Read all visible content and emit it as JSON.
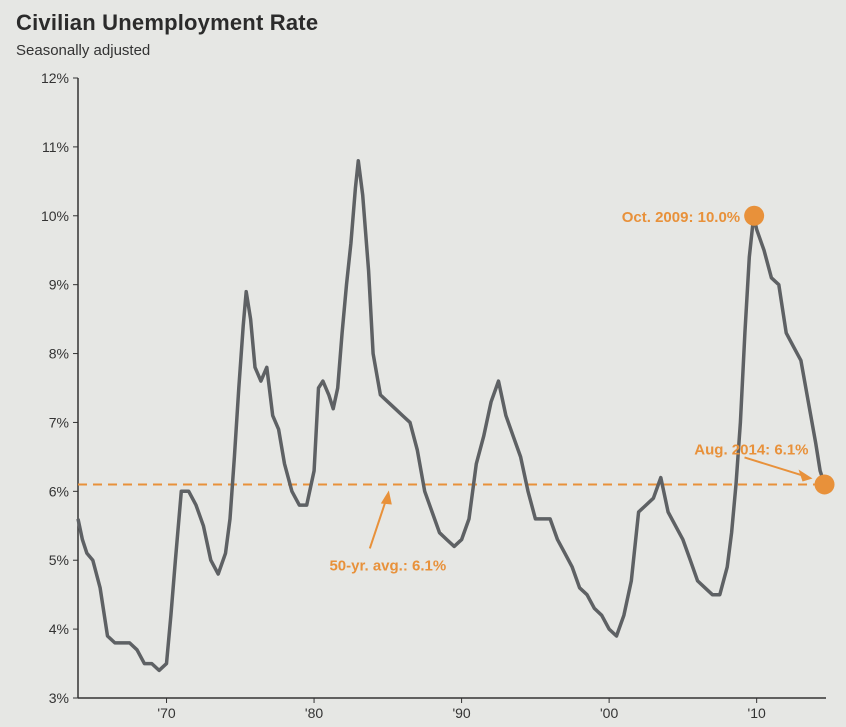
{
  "chart_data": {
    "type": "line",
    "title": "Civilian Unemployment Rate",
    "subtitle": "Seasonally adjusted",
    "xlabel": "",
    "ylabel": "",
    "xlim": [
      1964,
      2014.7
    ],
    "ylim": [
      3,
      12
    ],
    "y_ticks": [
      3,
      4,
      5,
      6,
      7,
      8,
      9,
      10,
      11,
      12
    ],
    "y_tick_labels": [
      "3%",
      "4%",
      "5%",
      "6%",
      "7%",
      "8%",
      "9%",
      "10%",
      "11%",
      "12%"
    ],
    "x_ticks": [
      1970,
      1980,
      1990,
      2000,
      2010
    ],
    "x_tick_labels": [
      "'70",
      "'80",
      "'90",
      "'00",
      "'10"
    ],
    "grid": false,
    "series": [
      {
        "color": "#5e6164",
        "x": [
          1964.0,
          1964.3,
          1964.6,
          1965.0,
          1965.5,
          1966.0,
          1966.5,
          1967.0,
          1967.5,
          1968.0,
          1968.5,
          1969.0,
          1969.5,
          1970.0,
          1970.3,
          1970.6,
          1971.0,
          1971.5,
          1972.0,
          1972.5,
          1973.0,
          1973.5,
          1974.0,
          1974.3,
          1974.6,
          1974.9,
          1975.2,
          1975.4,
          1975.7,
          1976.0,
          1976.4,
          1976.8,
          1977.2,
          1977.6,
          1978.0,
          1978.5,
          1979.0,
          1979.5,
          1980.0,
          1980.3,
          1980.6,
          1981.0,
          1981.3,
          1981.6,
          1981.9,
          1982.2,
          1982.5,
          1982.8,
          1983.0,
          1983.3,
          1983.7,
          1984.0,
          1984.5,
          1985.0,
          1985.5,
          1986.0,
          1986.5,
          1987.0,
          1987.5,
          1988.0,
          1988.5,
          1989.0,
          1989.5,
          1990.0,
          1990.5,
          1991.0,
          1991.5,
          1992.0,
          1992.5,
          1993.0,
          1993.5,
          1994.0,
          1994.5,
          1995.0,
          1995.5,
          1996.0,
          1996.5,
          1997.0,
          1997.5,
          1998.0,
          1998.5,
          1999.0,
          1999.5,
          2000.0,
          2000.5,
          2001.0,
          2001.5,
          2002.0,
          2002.5,
          2003.0,
          2003.5,
          2004.0,
          2004.5,
          2005.0,
          2005.5,
          2006.0,
          2006.5,
          2007.0,
          2007.5,
          2008.0,
          2008.3,
          2008.6,
          2008.9,
          2009.2,
          2009.5,
          2009.8,
          2010.0,
          2010.5,
          2011.0,
          2011.5,
          2012.0,
          2012.5,
          2013.0,
          2013.5,
          2014.0,
          2014.3,
          2014.6
        ],
        "y": [
          5.6,
          5.3,
          5.1,
          5.0,
          4.6,
          3.9,
          3.8,
          3.8,
          3.8,
          3.7,
          3.5,
          3.5,
          3.4,
          3.5,
          4.2,
          5.0,
          6.0,
          6.0,
          5.8,
          5.5,
          5.0,
          4.8,
          5.1,
          5.6,
          6.5,
          7.5,
          8.4,
          8.9,
          8.5,
          7.8,
          7.6,
          7.8,
          7.1,
          6.9,
          6.4,
          6.0,
          5.8,
          5.8,
          6.3,
          7.5,
          7.6,
          7.4,
          7.2,
          7.5,
          8.3,
          9.0,
          9.6,
          10.4,
          10.8,
          10.3,
          9.2,
          8.0,
          7.4,
          7.3,
          7.2,
          7.1,
          7.0,
          6.6,
          6.0,
          5.7,
          5.4,
          5.3,
          5.2,
          5.3,
          5.6,
          6.4,
          6.8,
          7.3,
          7.6,
          7.1,
          6.8,
          6.5,
          6.0,
          5.6,
          5.6,
          5.6,
          5.3,
          5.1,
          4.9,
          4.6,
          4.5,
          4.3,
          4.2,
          4.0,
          3.9,
          4.2,
          4.7,
          5.7,
          5.8,
          5.9,
          6.2,
          5.7,
          5.5,
          5.3,
          5.0,
          4.7,
          4.6,
          4.5,
          4.5,
          4.9,
          5.4,
          6.1,
          7.0,
          8.3,
          9.4,
          10.0,
          9.8,
          9.5,
          9.1,
          9.0,
          8.3,
          8.1,
          7.9,
          7.3,
          6.7,
          6.3,
          6.1
        ]
      }
    ],
    "average_line": {
      "value": 6.1,
      "color": "#e8913a"
    },
    "points": [
      {
        "x": 2009.83,
        "y": 10.0,
        "color": "#e8913a"
      },
      {
        "x": 2014.6,
        "y": 6.1,
        "color": "#e8913a"
      }
    ],
    "annotations": [
      {
        "text": "Oct. 2009: 10.0%"
      },
      {
        "text": "Aug. 2014: 6.1%"
      },
      {
        "text": "50-yr. avg.: 6.1%"
      }
    ]
  }
}
